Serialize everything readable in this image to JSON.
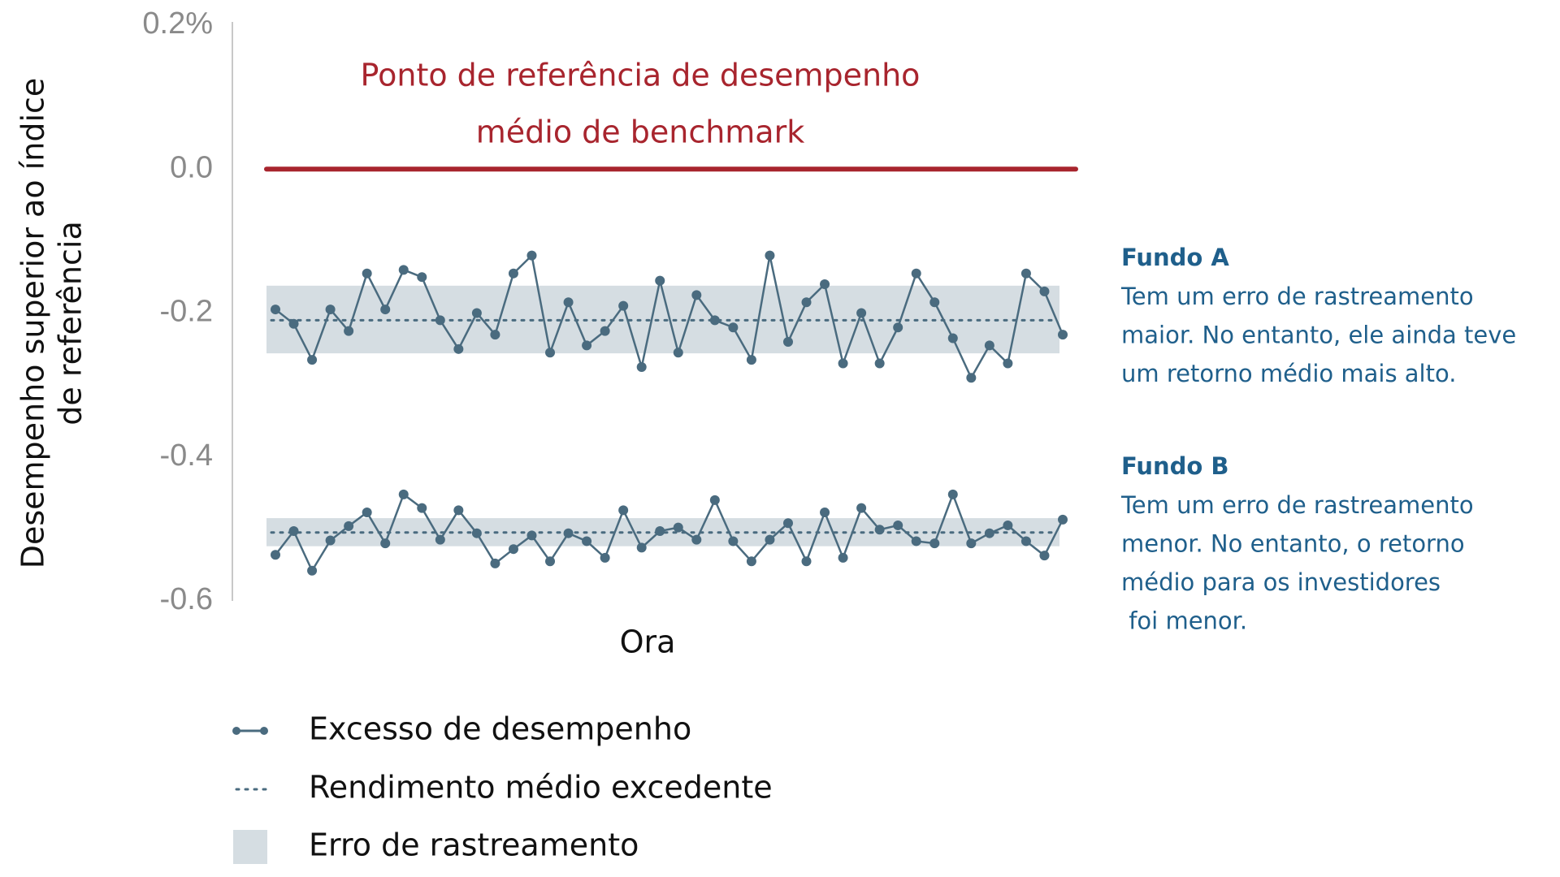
{
  "chart_data": {
    "type": "line",
    "ylabel": [
      "Desempenho superior ao índice",
      "de referência"
    ],
    "xlabel": "Ora",
    "categories": [
      null,
      null,
      null,
      null,
      null,
      null,
      null,
      null,
      null,
      null,
      null,
      null,
      null,
      null,
      null,
      null,
      null,
      null,
      null,
      null,
      null,
      null,
      null,
      null,
      null,
      null,
      null,
      null,
      null,
      null,
      null,
      null,
      null,
      null,
      null,
      null,
      null,
      null,
      null,
      null,
      null,
      null,
      null,
      null
    ],
    "ylim": [
      -0.6,
      0.2
    ],
    "yticks": [
      {
        "value": 0.2,
        "label": "0.2%"
      },
      {
        "value": 0,
        "label": "0.0"
      },
      -0.2,
      -0.4,
      -0.6
    ],
    "reference": {
      "value": 0,
      "color": "#a8252e",
      "label": [
        "Ponto de referência de desempenho",
        "médio de benchmark"
      ]
    },
    "series": [
      {
        "name": "Fundo A",
        "color": "#4a6b7f",
        "band_color": "#d5dde2",
        "values": [
          -0.195,
          -0.215,
          -0.265,
          -0.195,
          -0.225,
          -0.145,
          -0.195,
          -0.14,
          -0.15,
          -0.21,
          -0.25,
          -0.2,
          -0.23,
          -0.145,
          -0.12,
          -0.255,
          -0.185,
          -0.245,
          -0.225,
          -0.19,
          -0.275,
          -0.155,
          -0.255,
          -0.175,
          -0.21,
          -0.22,
          -0.265,
          -0.12,
          -0.24,
          -0.185,
          -0.16,
          -0.27,
          -0.2,
          -0.27,
          -0.22,
          -0.145,
          -0.185,
          -0.235,
          -0.29,
          -0.245,
          -0.27,
          -0.145,
          -0.17,
          -0.23
        ],
        "mean": -0.21,
        "band": [
          -0.256,
          -0.162
        ],
        "annotation": [
          "Tem um erro de rastreamento",
          "maior. No entanto, ele ainda teve",
          "um retorno médio mais alto."
        ]
      },
      {
        "name": "Fundo B",
        "color": "#4a6b7f",
        "band_color": "#d5dde2",
        "values": [
          -0.536,
          -0.503,
          -0.558,
          -0.516,
          -0.496,
          -0.477,
          -0.52,
          -0.452,
          -0.471,
          -0.515,
          -0.474,
          -0.506,
          -0.548,
          -0.528,
          -0.509,
          -0.545,
          -0.506,
          -0.517,
          -0.54,
          -0.474,
          -0.526,
          -0.503,
          -0.498,
          -0.515,
          -0.46,
          -0.517,
          -0.545,
          -0.515,
          -0.492,
          -0.545,
          -0.477,
          -0.54,
          -0.471,
          -0.501,
          -0.495,
          -0.517,
          -0.52,
          -0.452,
          -0.52,
          -0.506,
          -0.495,
          -0.517,
          -0.537,
          -0.487
        ],
        "mean": -0.505,
        "band": [
          -0.524,
          -0.485
        ],
        "annotation": [
          "Tem um erro de rastreamento",
          "menor. No entanto, o retorno",
          "médio para os investidores",
          " foi menor."
        ]
      }
    ],
    "legend": [
      "Excesso de desempenho",
      "Rendimento médio excedente",
      "Erro de rastreamento"
    ]
  }
}
